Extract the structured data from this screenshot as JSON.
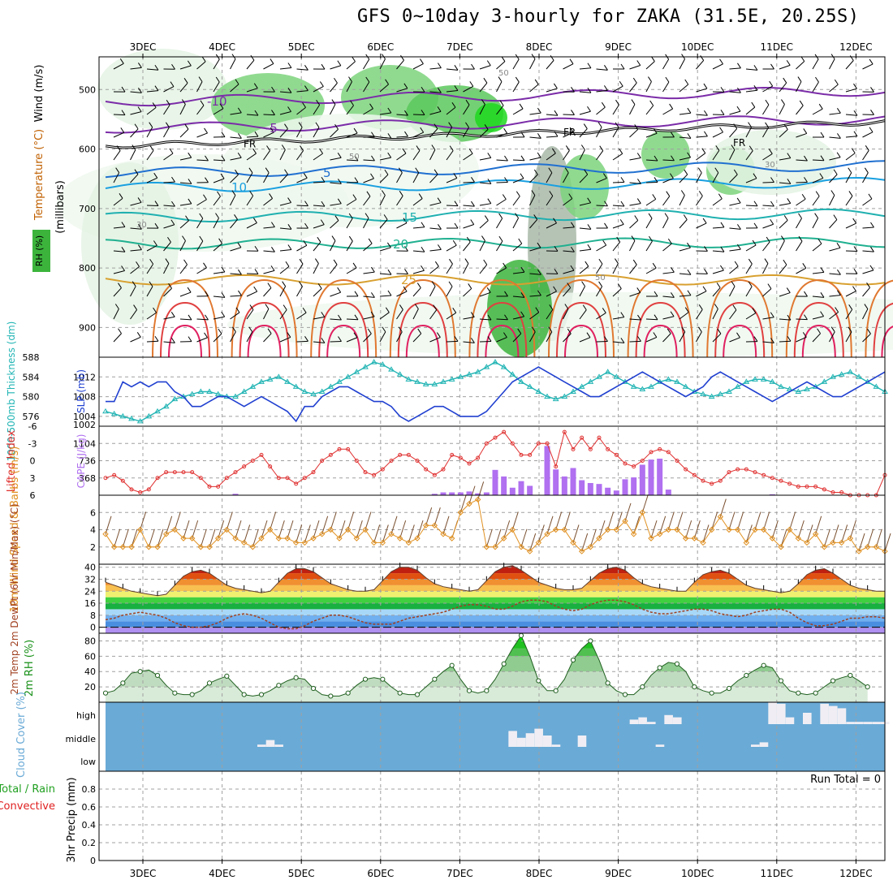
{
  "title": "GFS 0~10day 3-hourly for ZAKA (31.5E, 20.25S)",
  "dates": [
    "3DEC",
    "4DEC",
    "5DEC",
    "6DEC",
    "7DEC",
    "8DEC",
    "9DEC",
    "10DEC",
    "11DEC",
    "12DEC"
  ],
  "colors": {
    "rh": "#3cb43c",
    "temp": "#7b2ca8",
    "wind": "#000000",
    "thick": "#22b4b4",
    "slp": "#2040d0",
    "lifted": "#e03030",
    "cape": "#b070f0",
    "windspeed": "#e09020",
    "dewpt": "#a04020",
    "rh2m": "#189018",
    "cloud": "#6aaad6",
    "precip_total": "#20a020",
    "precip_conv": "#e02020"
  },
  "chart_data": [
    {
      "type": "heatmap",
      "panel": "upper-air",
      "ylabel_wind": "Wind (m/s)",
      "ylabel_temp": "Temperature (°C)",
      "ylabel_rh": "RH (%)",
      "ylabel_units": "(millibars)",
      "y_ticks": [
        500,
        600,
        700,
        800,
        900
      ],
      "ylim": [
        445,
        950
      ],
      "temp_contour_labels": [
        "-10",
        "-5",
        "5",
        "10",
        "15",
        "20",
        "25"
      ],
      "freezing_label": "FR",
      "rh_labels": [
        "50",
        "30",
        "70"
      ]
    },
    {
      "type": "line",
      "panel": "thickness-slp",
      "ylabel_left": "1000-500mb Thickness (dm)",
      "ylabel_right": "SLP (mb)",
      "thickness_ticks": [
        576,
        580,
        584,
        588
      ],
      "slp_ticks": [
        1004,
        1008,
        1012
      ],
      "slp_extra_tick": "1002",
      "thickness_range": [
        574,
        588
      ],
      "slp_range": [
        1002,
        1016
      ],
      "series": [
        {
          "name": "Thickness",
          "values": [
            577,
            576.5,
            576,
            575.5,
            575,
            576,
            577,
            578,
            579.5,
            580,
            580.5,
            581,
            581,
            580.5,
            580,
            580,
            581,
            582,
            583,
            583.5,
            584,
            583,
            582,
            581,
            580.5,
            581,
            582,
            583,
            584,
            585,
            586,
            587,
            586.5,
            585.5,
            584.5,
            583.5,
            583,
            582.5,
            582.5,
            583,
            583.5,
            584,
            584.5,
            585,
            586,
            587,
            586,
            584.5,
            583,
            582,
            581,
            580,
            579.5,
            580,
            581,
            582,
            583,
            584,
            585,
            584,
            583,
            582,
            581.5,
            582,
            583,
            583.5,
            583,
            582,
            581,
            580.5,
            580,
            580.5,
            581,
            582,
            583,
            583.5,
            583.5,
            583,
            582,
            581.5,
            581,
            581.5,
            582,
            583,
            584,
            584.5,
            585,
            584,
            583,
            582,
            581
          ]
        },
        {
          "name": "SLP",
          "values": [
            1007,
            1007,
            1011,
            1010,
            1011,
            1010,
            1011,
            1011,
            1009,
            1008,
            1006,
            1006,
            1007,
            1008,
            1008,
            1007,
            1006,
            1007,
            1008,
            1007,
            1006,
            1005,
            1003,
            1006,
            1006,
            1008,
            1009,
            1010,
            1010,
            1009,
            1008,
            1007,
            1007,
            1006,
            1004,
            1003,
            1004,
            1005,
            1006,
            1006,
            1005,
            1004,
            1004,
            1004,
            1005,
            1007,
            1009,
            1011,
            1012,
            1013,
            1014,
            1013,
            1012,
            1011,
            1010,
            1009,
            1008,
            1008,
            1009,
            1010,
            1011,
            1012,
            1013,
            1012,
            1011,
            1010,
            1009,
            1008,
            1009,
            1010,
            1012,
            1013,
            1012,
            1011,
            1010,
            1009,
            1008,
            1007,
            1008,
            1009,
            1010,
            1011,
            1010,
            1009,
            1008,
            1008,
            1009,
            1010,
            1011,
            1012,
            1013
          ]
        }
      ]
    },
    {
      "type": "bar",
      "panel": "lifted-cape",
      "ylabel_left": "Lifted Index",
      "ylabel_right": "CAPE (J/kg)",
      "li_ticks": [
        "-6",
        "-3",
        "0",
        "3",
        "6"
      ],
      "cape_ticks": [
        368,
        736,
        1104
      ],
      "li_range": [
        -6,
        6
      ],
      "cape_range": [
        0,
        1472
      ],
      "series": [
        {
          "name": "Lifted Index",
          "values": [
            3,
            2.5,
            3.5,
            5,
            5.5,
            5,
            3,
            2,
            2,
            2,
            2,
            3,
            4.5,
            4.5,
            3,
            2,
            1,
            0,
            -1,
            1,
            3,
            3,
            4,
            3,
            2,
            0,
            -1,
            -2,
            -2,
            0,
            2,
            2.5,
            1.5,
            0,
            -1,
            -1,
            0,
            1.5,
            2.5,
            1.5,
            -1,
            -0.5,
            0.5,
            -0.5,
            -3,
            -4,
            -5,
            -3,
            -1,
            -1,
            -3,
            -3,
            1,
            -5,
            -2,
            -4,
            -2,
            -4,
            -2,
            -1,
            0.5,
            1,
            0,
            -1.5,
            -2,
            -1.5,
            0,
            1.5,
            2.5,
            3.5,
            4,
            3.5,
            2,
            1.5,
            1.5,
            2,
            2.5,
            3,
            3.5,
            4,
            4.5,
            4.5,
            4.5,
            5,
            5.5,
            5.5,
            6,
            6,
            6,
            6,
            2.5
          ]
        },
        {
          "name": "CAPE",
          "values": [
            0,
            0,
            0,
            0,
            0,
            0,
            0,
            0,
            0,
            0,
            0,
            0,
            0,
            0,
            0,
            30,
            0,
            0,
            0,
            0,
            0,
            0,
            0,
            0,
            0,
            0,
            0,
            0,
            0,
            0,
            0,
            0,
            0,
            0,
            0,
            0,
            0,
            0,
            30,
            60,
            60,
            60,
            80,
            40,
            60,
            540,
            400,
            160,
            300,
            200,
            0,
            1050,
            550,
            400,
            580,
            320,
            260,
            240,
            160,
            100,
            340,
            380,
            650,
            760,
            780,
            120,
            0,
            0,
            0,
            0,
            0,
            0,
            0,
            0,
            0,
            0,
            0,
            20,
            0,
            0,
            0,
            0,
            0,
            0,
            0,
            0,
            0,
            0,
            0,
            0,
            0
          ]
        }
      ]
    },
    {
      "type": "line",
      "panel": "10m-wind",
      "ylabel": "10m Wind Speed & Barbs (m/s)",
      "y_ticks": [
        2,
        4,
        6
      ],
      "ylim": [
        0,
        8
      ],
      "series": [
        {
          "name": "Wind Speed",
          "values": [
            3.5,
            2,
            2,
            2,
            4,
            2,
            2,
            3.5,
            4,
            3,
            3,
            2,
            2,
            3,
            4,
            3,
            2.5,
            2,
            3,
            4,
            3,
            3,
            2.5,
            2.5,
            3,
            3.5,
            4,
            3,
            4,
            3,
            4,
            2.5,
            2.5,
            3.5,
            3,
            2.5,
            3,
            4.5,
            4.5,
            3.5,
            3,
            6,
            7,
            7.5,
            2,
            2,
            3,
            4,
            2,
            1.5,
            2.5,
            3.5,
            4,
            4,
            2.5,
            1.5,
            2,
            3,
            4,
            4,
            5,
            3.5,
            6,
            3,
            3.5,
            4,
            4,
            3,
            3,
            2.5,
            4,
            5.5,
            4,
            4,
            2.5,
            4,
            4,
            3,
            2,
            4,
            3,
            2.5,
            3.5,
            2,
            2.5,
            2.5,
            3,
            1.5,
            2,
            2,
            1.5
          ]
        }
      ]
    },
    {
      "type": "area",
      "panel": "2m-temp",
      "ylabel": "2m Temp 2m DewPt (6hr Min/Max) (°C)",
      "y_ticks": [
        0,
        8,
        16,
        24,
        32,
        40
      ],
      "ylim": [
        -4,
        42
      ],
      "series": [
        {
          "name": "2m Temp",
          "values": [
            30,
            28,
            26,
            24,
            23,
            22,
            21,
            22,
            28,
            34,
            37,
            38,
            36,
            32,
            28,
            26,
            25,
            24,
            23,
            24,
            30,
            36,
            39,
            39,
            37,
            33,
            29,
            27,
            25,
            24,
            24,
            25,
            31,
            37,
            40,
            40,
            38,
            33,
            29,
            27,
            26,
            25,
            24,
            25,
            31,
            37,
            40,
            41,
            38,
            34,
            30,
            28,
            26,
            25,
            25,
            26,
            31,
            36,
            39,
            40,
            38,
            33,
            29,
            27,
            26,
            25,
            24,
            24,
            30,
            35,
            37,
            38,
            36,
            32,
            28,
            26,
            25,
            24,
            23,
            24,
            29,
            35,
            38,
            39,
            36,
            32,
            28,
            26,
            25,
            24,
            24
          ]
        },
        {
          "name": "2m DewPt",
          "values": [
            5,
            6,
            8,
            9,
            10,
            9,
            8,
            6,
            3,
            1,
            0,
            0,
            1,
            3,
            6,
            8,
            9,
            8,
            6,
            3,
            0,
            -1,
            -1,
            1,
            4,
            6,
            8,
            8,
            7,
            5,
            3,
            2,
            2,
            2,
            4,
            6,
            7,
            8,
            9,
            10,
            12,
            14,
            15,
            15,
            14,
            12,
            12,
            14,
            17,
            18,
            18,
            17,
            14,
            12,
            11,
            12,
            15,
            17,
            18,
            18,
            17,
            15,
            12,
            10,
            9,
            9,
            10,
            11,
            12,
            12,
            11,
            9,
            8,
            7,
            8,
            10,
            11,
            12,
            12,
            10,
            6,
            3,
            1,
            1,
            2,
            4,
            6,
            6,
            7,
            7,
            6
          ]
        }
      ]
    },
    {
      "type": "area",
      "panel": "2m-rh",
      "ylabel": "2m RH (%)",
      "y_ticks": [
        20,
        40,
        60,
        80
      ],
      "ylim": [
        0,
        90
      ],
      "series": [
        {
          "name": "2m RH",
          "values": [
            12,
            15,
            25,
            38,
            40,
            42,
            35,
            22,
            12,
            10,
            10,
            15,
            25,
            30,
            34,
            22,
            10,
            8,
            10,
            15,
            22,
            28,
            32,
            30,
            18,
            10,
            8,
            8,
            12,
            22,
            30,
            32,
            30,
            20,
            12,
            10,
            10,
            20,
            30,
            40,
            48,
            30,
            15,
            12,
            15,
            30,
            50,
            70,
            87,
            60,
            28,
            15,
            15,
            30,
            55,
            70,
            80,
            55,
            25,
            15,
            10,
            10,
            20,
            35,
            45,
            52,
            50,
            40,
            20,
            15,
            12,
            12,
            18,
            28,
            35,
            42,
            48,
            45,
            28,
            15,
            12,
            10,
            12,
            20,
            28,
            32,
            35,
            28,
            20
          ]
        }
      ]
    },
    {
      "type": "bar",
      "panel": "cloud-cover",
      "ylabel": "Cloud Cover (%)",
      "y_ticks": [
        "high",
        "middle",
        "low"
      ],
      "series": [
        {
          "name": "high",
          "values": [
            0,
            0,
            0,
            0,
            0,
            0,
            0,
            0,
            0,
            0,
            0,
            0,
            0,
            0,
            0,
            0,
            0,
            0,
            0,
            0,
            0,
            0,
            0,
            0,
            0,
            0,
            0,
            0,
            0,
            0,
            0,
            0,
            0,
            0,
            0,
            0,
            0,
            0,
            0,
            0,
            0,
            0,
            0,
            0,
            0,
            0,
            0,
            0,
            0,
            0,
            0,
            0,
            0,
            0,
            0,
            0,
            0,
            0,
            0,
            0,
            0,
            20,
            30,
            10,
            0,
            40,
            30,
            0,
            0,
            0,
            0,
            0,
            0,
            0,
            0,
            0,
            0,
            100,
            90,
            30,
            0,
            50,
            0,
            90,
            80,
            70,
            10,
            10,
            10,
            10,
            10
          ]
        },
        {
          "name": "middle",
          "values": [
            0,
            0,
            0,
            0,
            0,
            0,
            0,
            0,
            0,
            0,
            0,
            0,
            0,
            0,
            0,
            0,
            0,
            0,
            10,
            30,
            10,
            0,
            0,
            0,
            0,
            0,
            0,
            0,
            0,
            0,
            0,
            0,
            0,
            0,
            0,
            0,
            0,
            0,
            0,
            0,
            0,
            0,
            0,
            0,
            0,
            0,
            0,
            70,
            40,
            60,
            80,
            50,
            10,
            0,
            0,
            50,
            0,
            0,
            0,
            0,
            0,
            0,
            0,
            0,
            10,
            0,
            0,
            0,
            0,
            0,
            0,
            0,
            0,
            0,
            0,
            10,
            20,
            0,
            0,
            0,
            0,
            0,
            0,
            0,
            0,
            0,
            0,
            0,
            0,
            0,
            0
          ]
        }
      ]
    },
    {
      "type": "bar",
      "panel": "precip",
      "ylabel": "3hr Precip (mm)",
      "legend_total": "Total / Rain",
      "legend_conv": "Convective",
      "run_total": "Run Total = 0",
      "y_ticks": [
        "0",
        "0.2",
        "0.4",
        "0.6",
        "0.8"
      ],
      "ylim": [
        0,
        1
      ],
      "series": [
        {
          "name": "Total / Rain",
          "values": [
            0,
            0,
            0,
            0,
            0,
            0,
            0,
            0,
            0,
            0
          ]
        },
        {
          "name": "Convective",
          "values": [
            0,
            0,
            0,
            0,
            0,
            0,
            0,
            0,
            0,
            0
          ]
        }
      ]
    }
  ]
}
